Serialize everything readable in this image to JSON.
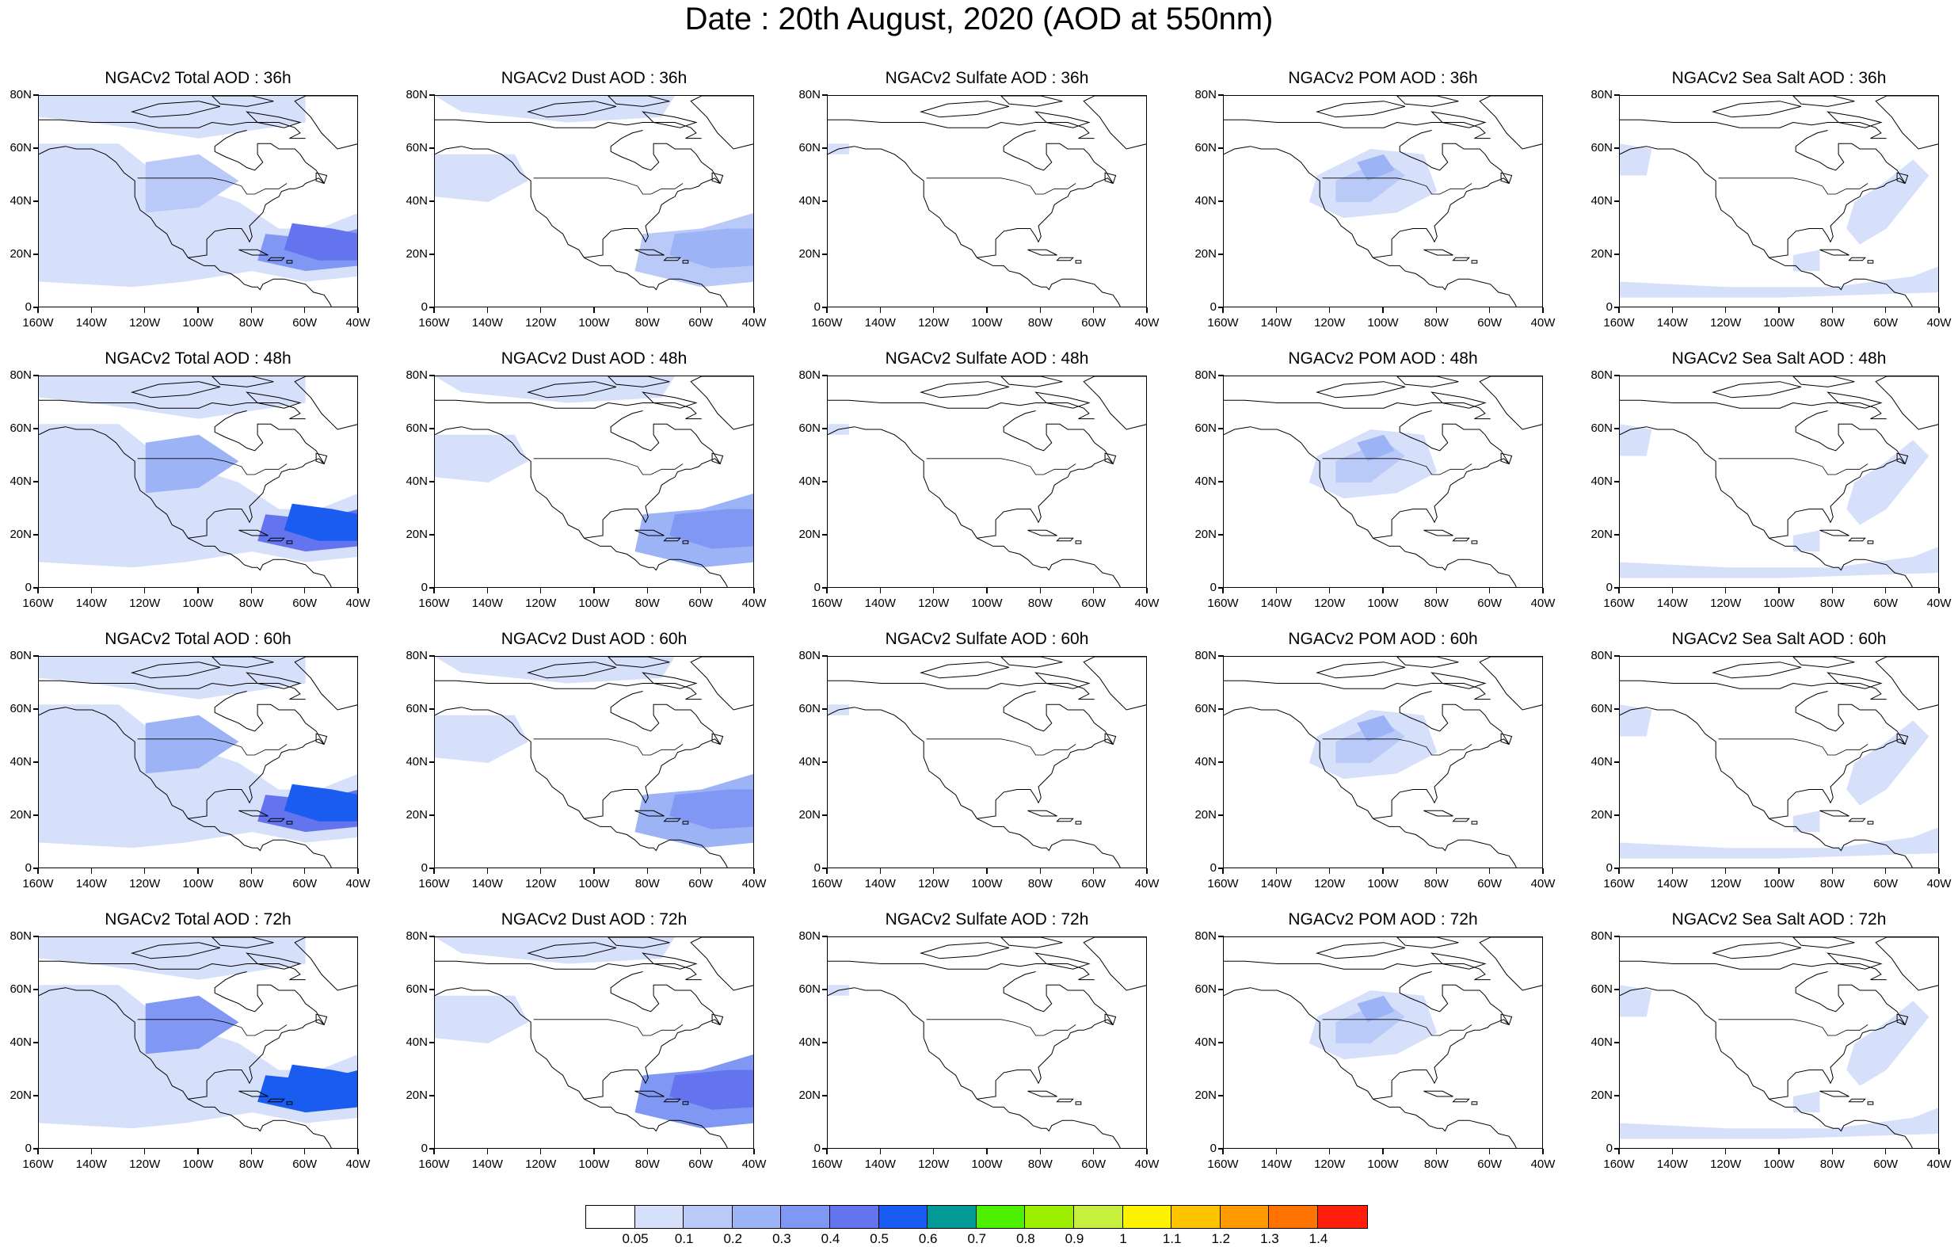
{
  "title": "Date : 20th August, 2020 (AOD at 550nm)",
  "chart_data": {
    "type": "heatmap",
    "layout": {
      "rows": [
        "36h",
        "48h",
        "60h",
        "72h"
      ],
      "cols": [
        "Total",
        "Dust",
        "Sulfate",
        "POM",
        "Sea Salt"
      ]
    },
    "panels": [
      {
        "title": "NGACv2 Total AOD : 36h",
        "species": "Total",
        "hour": "36h"
      },
      {
        "title": "NGACv2 Dust AOD : 36h",
        "species": "Dust",
        "hour": "36h"
      },
      {
        "title": "NGACv2 Sulfate AOD : 36h",
        "species": "Sulfate",
        "hour": "36h"
      },
      {
        "title": "NGACv2 POM AOD : 36h",
        "species": "POM",
        "hour": "36h"
      },
      {
        "title": "NGACv2 Sea Salt AOD : 36h",
        "species": "Sea Salt",
        "hour": "36h"
      },
      {
        "title": "NGACv2 Total AOD : 48h",
        "species": "Total",
        "hour": "48h"
      },
      {
        "title": "NGACv2 Dust AOD : 48h",
        "species": "Dust",
        "hour": "48h"
      },
      {
        "title": "NGACv2 Sulfate AOD : 48h",
        "species": "Sulfate",
        "hour": "48h"
      },
      {
        "title": "NGACv2 POM AOD : 48h",
        "species": "POM",
        "hour": "48h"
      },
      {
        "title": "NGACv2 Sea Salt AOD : 48h",
        "species": "Sea Salt",
        "hour": "48h"
      },
      {
        "title": "NGACv2 Total AOD : 60h",
        "species": "Total",
        "hour": "60h"
      },
      {
        "title": "NGACv2 Dust AOD : 60h",
        "species": "Dust",
        "hour": "60h"
      },
      {
        "title": "NGACv2 Sulfate AOD : 60h",
        "species": "Sulfate",
        "hour": "60h"
      },
      {
        "title": "NGACv2 POM AOD : 60h",
        "species": "POM",
        "hour": "60h"
      },
      {
        "title": "NGACv2 Sea Salt AOD : 60h",
        "species": "Sea Salt",
        "hour": "60h"
      },
      {
        "title": "NGACv2 Total AOD : 72h",
        "species": "Total",
        "hour": "72h"
      },
      {
        "title": "NGACv2 Dust AOD : 72h",
        "species": "Dust",
        "hour": "72h"
      },
      {
        "title": "NGACv2 Sulfate AOD : 72h",
        "species": "Sulfate",
        "hour": "72h"
      },
      {
        "title": "NGACv2 POM AOD : 72h",
        "species": "POM",
        "hour": "72h"
      },
      {
        "title": "NGACv2 Sea Salt  AOD : 72h",
        "species": "Sea Salt",
        "hour": "72h"
      }
    ],
    "x_ticks": [
      "160W",
      "140W",
      "120W",
      "100W",
      "80W",
      "60W",
      "40W"
    ],
    "y_ticks": [
      "80N",
      "60N",
      "40N",
      "20N",
      "0"
    ],
    "xlim": [
      -160,
      -40
    ],
    "ylim": [
      0,
      80
    ],
    "colorbar": {
      "levels": [
        "0.05",
        "0.1",
        "0.2",
        "0.3",
        "0.4",
        "0.5",
        "0.6",
        "0.7",
        "0.8",
        "0.9",
        "1",
        "1.1",
        "1.2",
        "1.3",
        "1.4"
      ],
      "colors": [
        "#ffffff",
        "#d6e0fb",
        "#b9c9f8",
        "#9cb3f6",
        "#8098f3",
        "#6474ee",
        "#1a5cf0",
        "#029a94",
        "#4cf000",
        "#9ced00",
        "#c7f03e",
        "#fff200",
        "#ffc400",
        "#ff9b00",
        "#ff7300",
        "#ff1e0a"
      ]
    }
  }
}
